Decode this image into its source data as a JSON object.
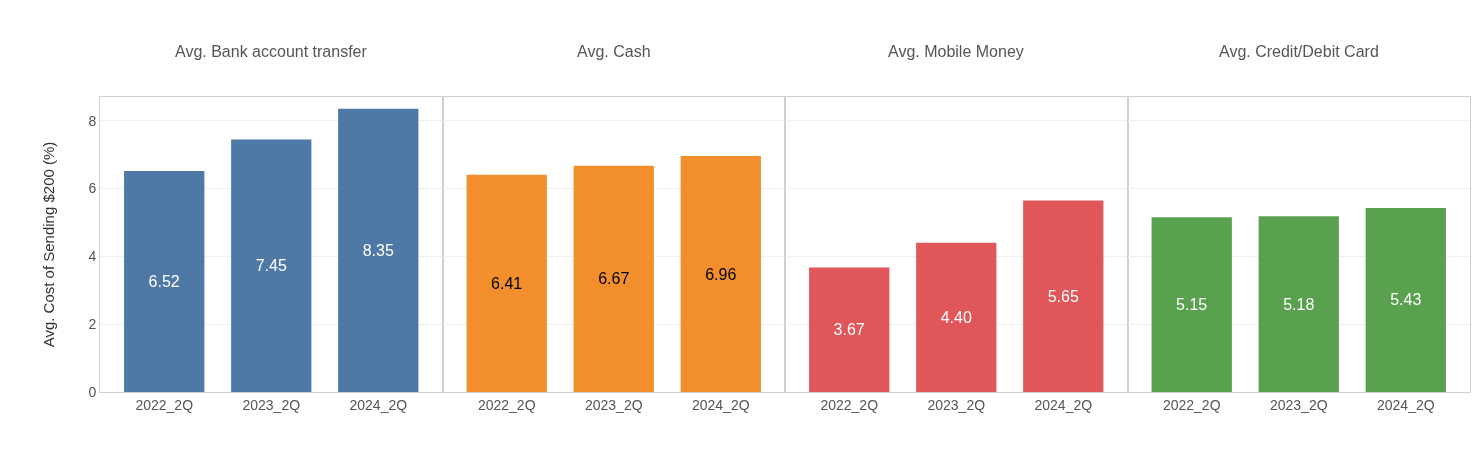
{
  "chart_data": [
    {
      "type": "bar",
      "title": "Avg. Bank account transfer",
      "ylabel": "Avg. Cost of Sending $200 (%)",
      "categories": [
        "2022_2Q",
        "2023_2Q",
        "2024_2Q"
      ],
      "values": [
        6.52,
        7.45,
        8.35
      ],
      "color": "#4e79a7",
      "data_labels": true,
      "ylim": [
        0,
        8.7
      ],
      "yticks": [
        0,
        2,
        4,
        6,
        8
      ],
      "grid": "y"
    },
    {
      "type": "bar",
      "title": "Avg. Cash",
      "categories": [
        "2022_2Q",
        "2023_2Q",
        "2024_2Q"
      ],
      "values": [
        6.41,
        6.67,
        6.96
      ],
      "color": "#f28e2b",
      "data_labels": true,
      "ylim": [
        0,
        8.7
      ],
      "yticks": [
        0,
        2,
        4,
        6,
        8
      ],
      "grid": "y",
      "tick_labels": "x"
    },
    {
      "type": "bar",
      "title": "Avg. Mobile Money",
      "categories": [
        "2022_2Q",
        "2023_2Q",
        "2024_2Q"
      ],
      "values": [
        3.67,
        4.4,
        5.65
      ],
      "value_labels": [
        "3.67",
        "4.40",
        "5.65"
      ],
      "color": "#e15759",
      "ylim": [
        0,
        8.7
      ],
      "yticks": [
        0,
        2,
        4,
        6,
        8
      ],
      "grid": "y",
      "tick_labels": "x"
    },
    {
      "type": "bar",
      "title": "Avg. Credit/Debit Card",
      "categories": [
        "2022_2Q",
        "2023_2Q",
        "2024_2Q"
      ],
      "values": [
        5.15,
        5.18,
        5.43
      ],
      "color": "#59a14f",
      "data_labels": true,
      "ylim": [
        0,
        8.7
      ],
      "yticks": [
        0,
        2,
        4,
        6,
        8
      ],
      "grid": "y",
      "tick_labels": "x"
    }
  ]
}
